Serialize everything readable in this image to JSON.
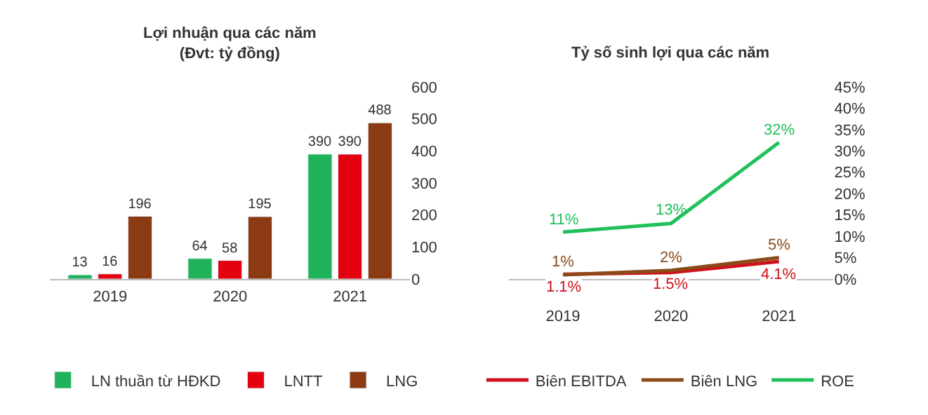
{
  "chart_data": [
    {
      "type": "bar",
      "title": "Lợi nhuận qua các năm\n(Đvt: tỷ đồng)",
      "categories": [
        "2019",
        "2020",
        "2021"
      ],
      "series": [
        {
          "name": "LN thuần từ HĐKD",
          "color": "#1fb25a",
          "values": [
            13,
            64,
            390
          ]
        },
        {
          "name": "LNTT",
          "color": "#e3000f",
          "values": [
            16,
            58,
            390
          ]
        },
        {
          "name": "LNG",
          "color": "#8b3a12",
          "values": [
            196,
            195,
            488
          ]
        }
      ],
      "ylim": [
        0,
        600
      ],
      "yticks": [
        0,
        100,
        200,
        300,
        400,
        500,
        600
      ],
      "data_labels": true,
      "legend": "bottom"
    },
    {
      "type": "line",
      "title": "Tỷ số sinh lợi qua các năm",
      "categories": [
        "2019",
        "2020",
        "2021"
      ],
      "series": [
        {
          "name": "Biên EBITDA",
          "color": "#d0101a",
          "values": [
            1.1,
            1.5,
            4.1
          ],
          "value_labels": [
            "1.1%",
            "1.5%",
            "4.1%"
          ]
        },
        {
          "name": "Biên LNG",
          "color": "#8b4a1a",
          "values": [
            1,
            2,
            5
          ],
          "value_labels": [
            "1%",
            "2%",
            "5%"
          ]
        },
        {
          "name": "ROE",
          "color": "#20c05a",
          "values": [
            11,
            13,
            32
          ],
          "value_labels": [
            "11%",
            "13%",
            "32%"
          ]
        }
      ],
      "ylim": [
        0,
        45
      ],
      "yticks": [
        {
          "value": 0,
          "label": "0%"
        },
        {
          "value": 5,
          "label": "5%"
        },
        {
          "value": 10,
          "label": "10%"
        },
        {
          "value": 15,
          "label": "15%"
        },
        {
          "value": 20,
          "label": "20%"
        },
        {
          "value": 25,
          "label": "25%"
        },
        {
          "value": 30,
          "label": "30%"
        },
        {
          "value": 35,
          "label": "35%"
        },
        {
          "value": 40,
          "label": "40%"
        },
        {
          "value": 45,
          "label": "45%"
        }
      ],
      "legend": "bottom",
      "marker": "none",
      "line_style": "solid"
    }
  ]
}
